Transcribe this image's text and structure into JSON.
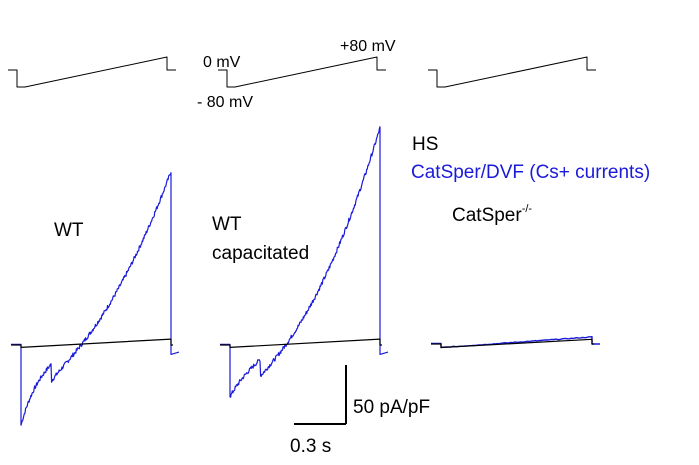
{
  "chart_data": {
    "type": "line",
    "voltage_protocol": {
      "labels": {
        "holding": "0 mV",
        "ramp_start": "- 80 mV",
        "ramp_end": "+80 mV"
      }
    },
    "legend": [
      {
        "text": "HS",
        "color": "#000000"
      },
      {
        "text": "CatSper/DVF (Cs+ currents)",
        "color": "#1a1adb"
      }
    ],
    "panels": [
      {
        "label": "WT",
        "label2": "",
        "hs": {
          "start": -2,
          "end": 5
        },
        "dvf": {
          "min": -68,
          "peak": 147
        }
      },
      {
        "label": "WT",
        "label2": "capacitated",
        "hs": {
          "start": -2,
          "end": 5
        },
        "dvf": {
          "min": -44,
          "peak": 184
        }
      },
      {
        "label": "CatSper",
        "label_sup": "-/-",
        "hs": {
          "start": -3,
          "end": 4
        },
        "dvf": {
          "start": -3,
          "end": 6
        }
      }
    ],
    "scale_bar": {
      "y_label": "50 pA/pF",
      "x_label": "0.3 s",
      "y_value": 50,
      "x_value": 0.3
    },
    "colors": {
      "hs": "#000000",
      "dvf": "#1a1adb"
    }
  }
}
